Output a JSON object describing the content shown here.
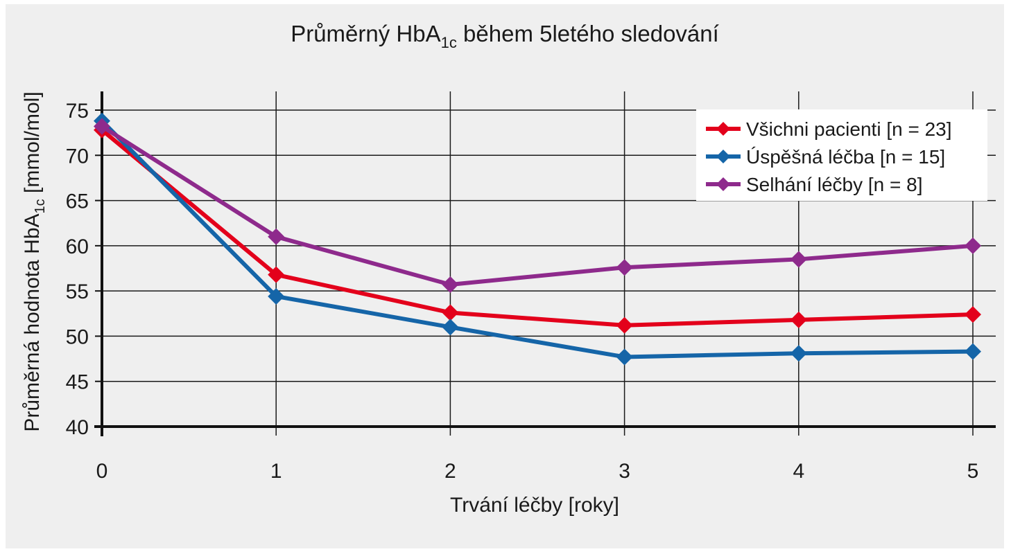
{
  "chart_data": {
    "type": "line",
    "title": "Průměrný HbA",
    "title_sub": "1c",
    "title_rest": " během 5letého sledování",
    "ylabel": "Průměrná hodnota HbA",
    "ylabel_sub": "1c",
    "ylabel_rest": " [mmol/mol]",
    "xlabel": "Trvání léčby [roky]",
    "x": [
      0,
      1,
      2,
      3,
      4,
      5
    ],
    "xlim": [
      0,
      5
    ],
    "ylim": [
      40,
      75
    ],
    "yticks": [
      40,
      45,
      50,
      55,
      60,
      65,
      70,
      75
    ],
    "grid": true,
    "legend_position": "top-right",
    "series": [
      {
        "name": "Všichni pacienti [n = 23]",
        "color": "#e3001b",
        "values": [
          72.8,
          56.8,
          52.6,
          51.2,
          51.8,
          52.4
        ]
      },
      {
        "name": "Úspěšná léčba [n = 15]",
        "color": "#1565a8",
        "values": [
          73.8,
          54.4,
          51.0,
          47.7,
          48.1,
          48.3
        ]
      },
      {
        "name": "Selhání léčby [n = 8]",
        "color": "#8e2a8c",
        "values": [
          73.2,
          61.0,
          55.7,
          57.6,
          58.5,
          60.0
        ]
      }
    ]
  }
}
